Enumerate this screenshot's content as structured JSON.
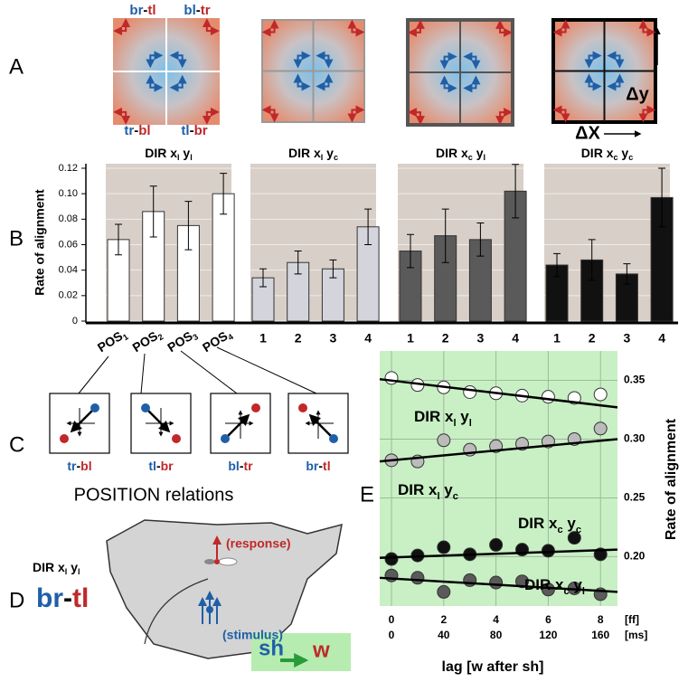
{
  "panel_labels": [
    "A",
    "B",
    "C",
    "D",
    "E"
  ],
  "panel_a": {
    "corner_labels": [
      {
        "first": "br",
        "sep": "-",
        "second": "tl"
      },
      {
        "first": "bl",
        "sep": "-",
        "second": "tr"
      },
      {
        "first": "tr",
        "sep": "-",
        "second": "bl"
      },
      {
        "first": "tl",
        "sep": "-",
        "second": "br"
      }
    ],
    "dy": "Δy",
    "dx": "ΔX"
  },
  "chart_data": [
    {
      "type": "bar",
      "title": [
        "DIR x",
        "l",
        " y",
        "l"
      ],
      "category_prefix": "POS",
      "categories": [
        "1",
        "2",
        "3",
        "4"
      ],
      "values": [
        0.064,
        0.086,
        0.075,
        0.1
      ],
      "errors": [
        0.012,
        0.02,
        0.019,
        0.016
      ],
      "color": "#ffffff",
      "ylim": [
        0,
        0.12
      ],
      "yticks": [
        0,
        0.02,
        0.04,
        0.06,
        0.08,
        {
          "value": 0.1,
          "label": "0.10"
        },
        0.12
      ],
      "ylabel": "Rate of alignment",
      "grid": true
    },
    {
      "type": "bar",
      "title": [
        "DIR x",
        "l",
        " y",
        "c"
      ],
      "categories": [
        "1",
        "2",
        "3",
        "4"
      ],
      "values": [
        0.034,
        0.046,
        0.041,
        0.074
      ],
      "errors": [
        0.007,
        0.009,
        0.007,
        0.014
      ],
      "color": "#d4d4dc",
      "ylim": [
        0,
        0.12
      ],
      "yticks": [
        0,
        0.02,
        0.04,
        0.06,
        0.08,
        {
          "value": 0.1,
          "label": "0.10"
        },
        0.12
      ],
      "grid": true
    },
    {
      "type": "bar",
      "title": [
        "DIR x",
        "c",
        " y",
        "l"
      ],
      "categories": [
        "1",
        "2",
        "3",
        "4"
      ],
      "values": [
        0.055,
        0.067,
        0.064,
        0.102
      ],
      "errors": [
        0.013,
        0.021,
        0.013,
        0.021
      ],
      "color": "#5a5a5a",
      "ylim": [
        0,
        0.12
      ],
      "yticks": [
        0,
        0.02,
        0.04,
        0.06,
        0.08,
        {
          "value": 0.1,
          "label": "0.10"
        },
        0.12
      ],
      "grid": true
    },
    {
      "type": "bar",
      "title": [
        "DIR x",
        "c",
        " y",
        "c"
      ],
      "categories": [
        "1",
        "2",
        "3",
        "4"
      ],
      "values": [
        0.044,
        0.048,
        0.037,
        0.097
      ],
      "errors": [
        0.009,
        0.016,
        0.008,
        0.023
      ],
      "color": "#111111",
      "ylim": [
        0,
        0.12
      ],
      "yticks": [
        0,
        0.02,
        0.04,
        0.06,
        0.08,
        {
          "value": 0.1,
          "label": "0.10"
        },
        0.12
      ],
      "grid": true
    },
    {
      "type": "scatter",
      "x": [
        0,
        1,
        2,
        3,
        4,
        5,
        6,
        7,
        8
      ],
      "xlim": [
        -0.45,
        8.65
      ],
      "ylim": [
        0.158,
        0.375
      ],
      "xticks": [
        0,
        2,
        4,
        6,
        8
      ],
      "x2ticks": [
        {
          "value": 0,
          "label": "0"
        },
        {
          "value": 2,
          "label": "40"
        },
        {
          "value": 4,
          "label": "80"
        },
        {
          "value": 6,
          "label": "120"
        },
        {
          "value": 8,
          "label": "160"
        }
      ],
      "xunit": "[ff]",
      "x2unit": "[ms]",
      "xlabel": "lag [w after sh]",
      "yticks": [
        0.35,
        {
          "value": 0.3,
          "label": "0.30"
        },
        0.25,
        {
          "value": 0.2,
          "label": "0.20"
        }
      ],
      "ylabel": "Rate of alignment",
      "grid": true,
      "background": "#c8f0c4",
      "series": [
        {
          "name": [
            "DIR x",
            "l",
            " y",
            "l"
          ],
          "color": "#ffffff",
          "values": [
            0.352,
            0.346,
            0.344,
            0.34,
            0.339,
            0.337,
            0.336,
            0.335,
            0.338
          ],
          "trend": [
            0.351,
            0.327
          ]
        },
        {
          "name": [
            "DIR x",
            "l",
            " y",
            "c"
          ],
          "color": "#bbbbbb",
          "values": [
            0.282,
            0.281,
            0.299,
            0.291,
            0.294,
            0.296,
            0.298,
            0.3,
            0.309
          ],
          "trend": [
            0.281,
            0.3
          ]
        },
        {
          "name": [
            "DIR x",
            "c",
            " y",
            "c"
          ],
          "color": "#111111",
          "values": [
            0.198,
            0.201,
            0.208,
            0.202,
            0.21,
            0.206,
            0.205,
            0.216,
            0.202
          ],
          "trend": [
            0.199,
            0.206
          ]
        },
        {
          "name": [
            "DIR x",
            "c",
            " y",
            "l"
          ],
          "color": "#5a5a5a",
          "values": [
            0.184,
            0.182,
            0.17,
            0.18,
            0.178,
            0.179,
            0.172,
            0.173,
            0.168
          ],
          "trend": [
            0.182,
            0.17
          ]
        }
      ]
    }
  ],
  "panel_c": {
    "relations": [
      {
        "first": "tr",
        "sep": "-",
        "second": "bl"
      },
      {
        "first": "tl",
        "sep": "-",
        "second": "br"
      },
      {
        "first": "bl",
        "sep": "-",
        "second": "tr"
      },
      {
        "first": "br",
        "sep": "-",
        "second": "tl"
      }
    ],
    "caption": "POSITION relations"
  },
  "panel_d": {
    "dir_label": [
      "DIR x",
      "l",
      " y",
      "l"
    ],
    "relation": {
      "first": "br",
      "sep": "-",
      "second": "tl"
    },
    "response": "(response)",
    "stimulus": "(stimulus)",
    "sh": "sh",
    "w": "w"
  }
}
